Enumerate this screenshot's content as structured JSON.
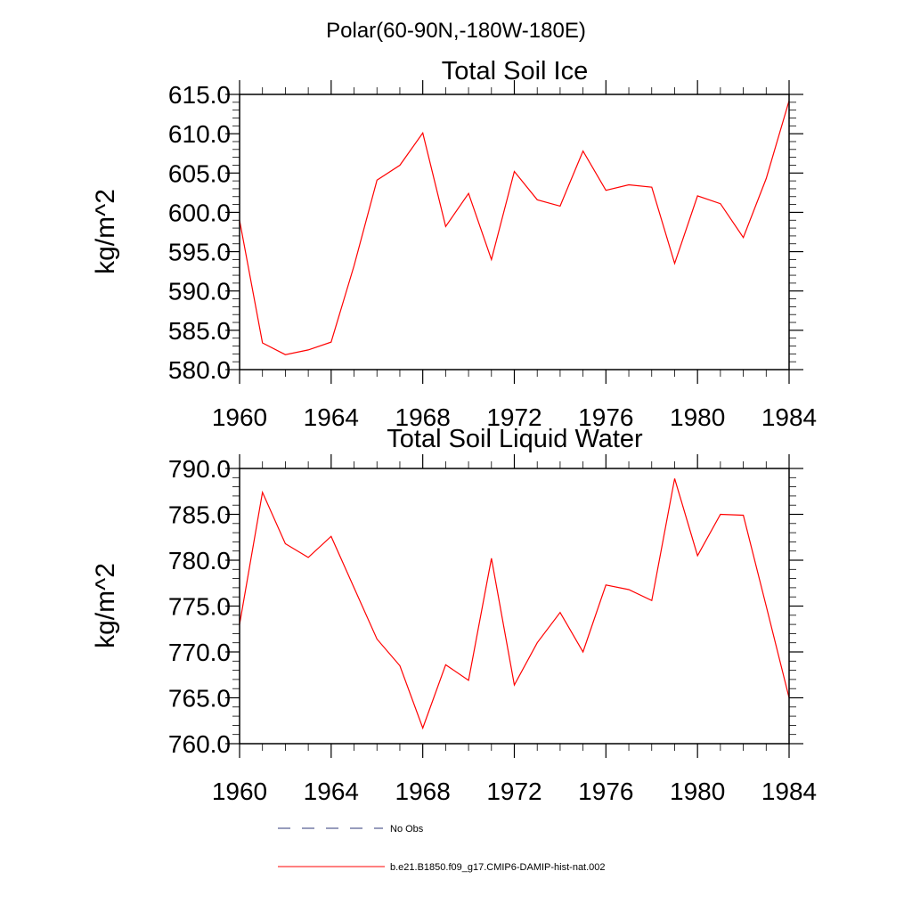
{
  "supertitle": "Polar(60-90N,-180W-180E)",
  "legend": {
    "items": [
      {
        "label": "No Obs",
        "color": "#2f3a7a",
        "style": "dashed"
      },
      {
        "label": "b.e21.B1850.f09_g17.CMIP6-DAMIP-hist-nat.002",
        "color": "#ff0000",
        "style": "solid"
      }
    ]
  },
  "chart_data": [
    {
      "type": "line",
      "title": "Total Soil Ice",
      "ylabel": "kg/m^2",
      "xlabel": "",
      "xlim": [
        1960,
        1984
      ],
      "ylim": [
        580,
        615
      ],
      "xticks": [
        "1960",
        "1964",
        "1968",
        "1972",
        "1976",
        "1980",
        "1984"
      ],
      "yticks": [
        "580.0",
        "585.0",
        "590.0",
        "595.0",
        "600.0",
        "605.0",
        "610.0",
        "615.0"
      ],
      "series": [
        {
          "color": "#ff0000",
          "x": [
            1960,
            1961,
            1962,
            1963,
            1964,
            1965,
            1966,
            1967,
            1968,
            1969,
            1970,
            1971,
            1972,
            1973,
            1974,
            1975,
            1976,
            1977,
            1978,
            1979,
            1980,
            1981,
            1982,
            1983,
            1984
          ],
          "values": [
            599.0,
            583.4,
            581.9,
            582.5,
            583.5,
            593.2,
            604.1,
            606.0,
            610.1,
            598.2,
            602.4,
            594.0,
            605.2,
            601.6,
            600.8,
            607.8,
            602.8,
            603.5,
            603.2,
            593.5,
            602.1,
            601.1,
            596.8,
            604.3,
            614.2
          ]
        }
      ]
    },
    {
      "type": "line",
      "title": "Total Soil Liquid Water",
      "ylabel": "kg/m^2",
      "xlabel": "",
      "xlim": [
        1960,
        1984
      ],
      "ylim": [
        760,
        790
      ],
      "xticks": [
        "1960",
        "1964",
        "1968",
        "1972",
        "1976",
        "1980",
        "1984"
      ],
      "yticks": [
        "760.0",
        "765.0",
        "770.0",
        "775.0",
        "780.0",
        "785.0",
        "790.0"
      ],
      "series": [
        {
          "color": "#ff0000",
          "x": [
            1960,
            1961,
            1962,
            1963,
            1964,
            1965,
            1966,
            1967,
            1968,
            1969,
            1970,
            1971,
            1972,
            1973,
            1974,
            1975,
            1976,
            1977,
            1978,
            1979,
            1980,
            1981,
            1982,
            1983,
            1984
          ],
          "values": [
            773.0,
            787.4,
            781.8,
            780.3,
            782.6,
            777.0,
            771.4,
            768.5,
            761.7,
            768.6,
            766.9,
            780.2,
            766.4,
            771.0,
            774.3,
            770.0,
            777.3,
            776.8,
            775.6,
            788.9,
            780.5,
            785.0,
            784.9,
            775.0,
            765.0
          ]
        }
      ]
    }
  ]
}
